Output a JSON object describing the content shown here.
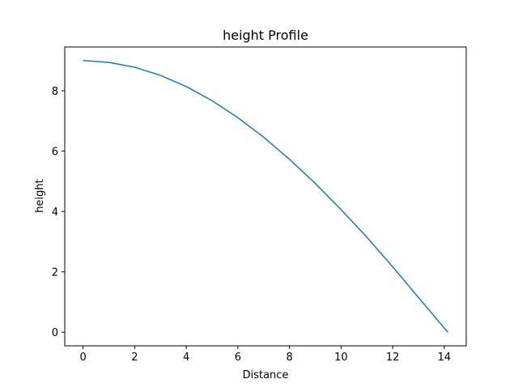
{
  "chart_data": {
    "type": "line",
    "title": "height Profile",
    "xlabel": "Distance",
    "ylabel": "height",
    "xlim": [
      -0.71,
      14.85
    ],
    "ylim": [
      -0.45,
      9.45
    ],
    "xticks": [
      0,
      2,
      4,
      6,
      8,
      10,
      12,
      14
    ],
    "yticks": [
      0,
      2,
      4,
      6,
      8
    ],
    "grid": false,
    "legend": "none",
    "series": [
      {
        "color": "#1f77b4",
        "x": [
          0,
          1,
          2,
          3,
          4,
          5,
          6,
          7,
          8,
          9,
          10,
          11,
          12,
          13,
          14.14
        ],
        "y": [
          9.0,
          8.94,
          8.78,
          8.51,
          8.14,
          7.67,
          7.11,
          6.46,
          5.73,
          4.93,
          4.06,
          3.15,
          2.17,
          1.15,
          0.0
        ]
      }
    ]
  }
}
